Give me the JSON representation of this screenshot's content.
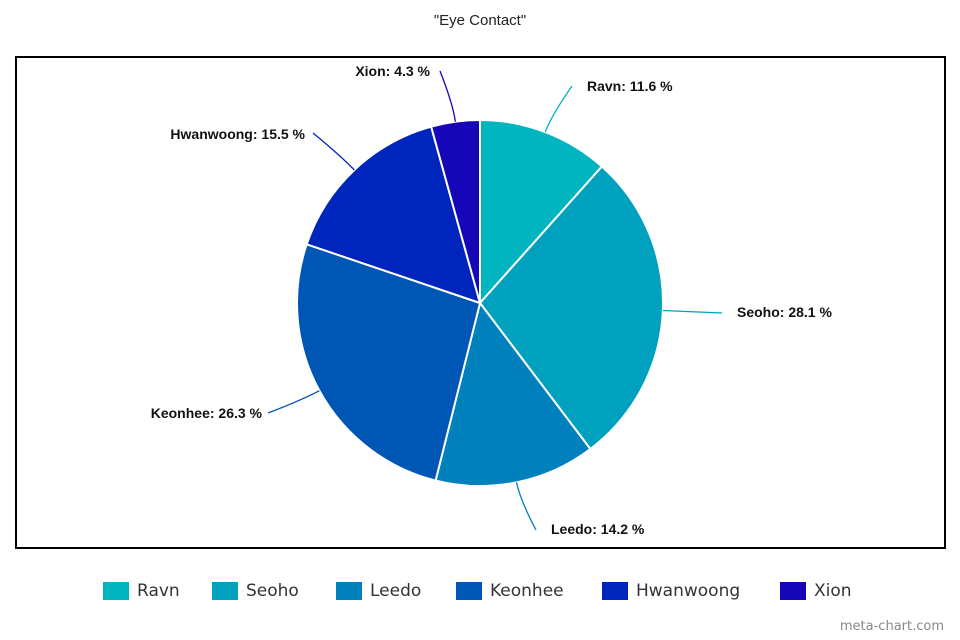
{
  "chart_data": {
    "type": "pie",
    "title": "\"Eye Contact\"",
    "slices": [
      {
        "name": "Ravn",
        "value": 11.6,
        "label": "Ravn: 11.6 %",
        "color": "#00b5c0"
      },
      {
        "name": "Seoho",
        "value": 28.1,
        "label": "Seoho: 28.1 %",
        "color": "#00a1be"
      },
      {
        "name": "Leedo",
        "value": 14.2,
        "label": "Leedo: 14.2 %",
        "color": "#0081bd"
      },
      {
        "name": "Keonhee",
        "value": 26.3,
        "label": "Keonhee: 26.3 %",
        "color": "#0056b4"
      },
      {
        "name": "Hwanwoong",
        "value": 15.5,
        "label": "Hwanwoong: 15.5 %",
        "color": "#0025bd"
      },
      {
        "name": "Xion",
        "value": 4.3,
        "label": "Xion: 4.3 %",
        "color": "#1506b8"
      }
    ],
    "legend_position": "bottom"
  },
  "watermark": "meta-chart.com"
}
